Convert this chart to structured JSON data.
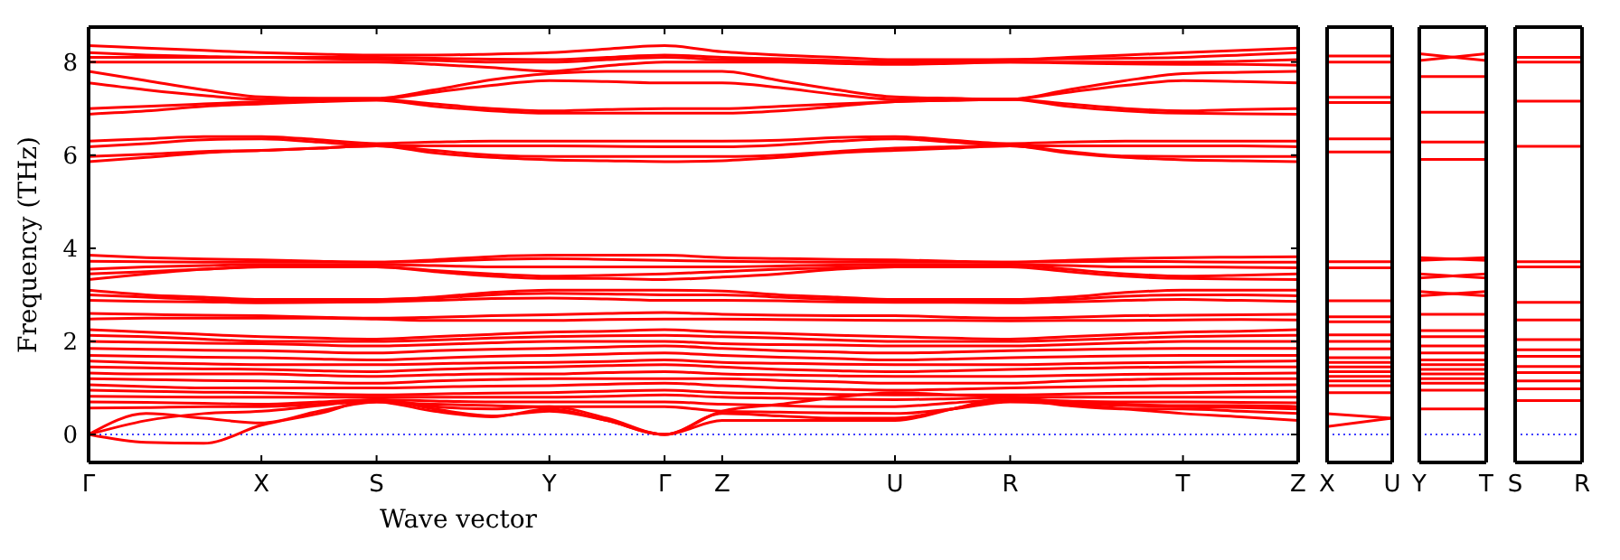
{
  "chart_data": [
    {
      "type": "line",
      "xlabel": "Wave vector",
      "ylabel": "Frequency (THz)",
      "color": "#ff0000",
      "tick_labels": "xy",
      "categories": [
        "Γ",
        null,
        null,
        "X",
        null,
        "S",
        null,
        null,
        "Y",
        null,
        "Γ",
        "Z",
        null,
        null,
        "U",
        null,
        "R",
        null,
        null,
        "T",
        null,
        "Z"
      ],
      "ylim": [
        -0.6,
        8.75
      ],
      "yticks": [
        0,
        2,
        4,
        6,
        8
      ],
      "ref_lines": [
        {
          "axis": "y",
          "value": 0,
          "color": "#0000ff",
          "line_style": "dotted"
        }
      ],
      "series": [
        {
          "values": [
            8.35,
            8.3,
            8.25,
            8.2,
            8.17,
            8.15,
            8.15,
            8.17,
            8.2,
            8.28,
            8.35,
            8.22,
            8.15,
            8.1,
            8.05,
            8.05,
            8.05,
            8.1,
            8.15,
            8.2,
            8.25,
            8.3
          ]
        },
        {
          "values": [
            8.2,
            8.15,
            8.12,
            8.1,
            8.1,
            8.1,
            8.08,
            8.06,
            8.05,
            8.1,
            8.15,
            8.1,
            8.07,
            8.03,
            8.0,
            8.02,
            8.05,
            8.07,
            8.08,
            8.1,
            8.15,
            8.2
          ]
        },
        {
          "values": [
            8.1,
            8.1,
            8.1,
            8.1,
            8.07,
            8.05,
            8.03,
            8.0,
            8.0,
            8.05,
            8.1,
            8.05,
            8.03,
            8.0,
            8.0,
            8.0,
            8.0,
            8.0,
            8.0,
            8.0,
            8.02,
            8.05
          ]
        },
        {
          "values": [
            8.0,
            8.0,
            8.0,
            8.0,
            8.0,
            8.0,
            7.95,
            7.88,
            7.8,
            7.92,
            8.0,
            8.0,
            8.0,
            7.97,
            7.95,
            7.97,
            8.0,
            7.98,
            7.96,
            7.95,
            7.95,
            7.93
          ]
        },
        {
          "values": [
            7.8,
            7.6,
            7.4,
            7.25,
            7.22,
            7.22,
            7.4,
            7.62,
            7.75,
            7.8,
            7.8,
            7.8,
            7.6,
            7.4,
            7.25,
            7.22,
            7.2,
            7.4,
            7.6,
            7.75,
            7.78,
            7.8
          ]
        },
        {
          "values": [
            7.55,
            7.4,
            7.28,
            7.2,
            7.2,
            7.2,
            7.35,
            7.5,
            7.6,
            7.58,
            7.55,
            7.55,
            7.45,
            7.3,
            7.2,
            7.2,
            7.2,
            7.35,
            7.5,
            7.6,
            7.58,
            7.55
          ]
        },
        {
          "values": [
            7.0,
            7.05,
            7.1,
            7.15,
            7.18,
            7.2,
            7.1,
            7.0,
            6.95,
            6.98,
            7.0,
            7.0,
            7.05,
            7.1,
            7.15,
            7.18,
            7.2,
            7.1,
            7.0,
            6.95,
            6.98,
            7.0
          ]
        },
        {
          "values": [
            6.88,
            6.95,
            7.05,
            7.1,
            7.15,
            7.18,
            7.05,
            6.95,
            6.9,
            6.9,
            6.9,
            6.9,
            6.95,
            7.05,
            7.15,
            7.18,
            7.2,
            7.05,
            6.95,
            6.9,
            6.89,
            6.88
          ]
        },
        {
          "values": [
            6.3,
            6.35,
            6.4,
            6.4,
            6.33,
            6.25,
            6.28,
            6.3,
            6.3,
            6.3,
            6.3,
            6.3,
            6.32,
            6.38,
            6.4,
            6.32,
            6.25,
            6.28,
            6.3,
            6.3,
            6.3,
            6.3
          ]
        },
        {
          "values": [
            6.18,
            6.25,
            6.33,
            6.35,
            6.28,
            6.2,
            6.2,
            6.2,
            6.2,
            6.19,
            6.18,
            6.18,
            6.22,
            6.3,
            6.35,
            6.28,
            6.2,
            6.2,
            6.2,
            6.2,
            6.2,
            6.18
          ]
        },
        {
          "values": [
            5.97,
            6.02,
            6.08,
            6.1,
            6.15,
            6.2,
            6.1,
            6.0,
            5.97,
            5.97,
            5.97,
            5.97,
            6.0,
            6.08,
            6.15,
            6.18,
            6.2,
            6.08,
            5.98,
            5.97,
            5.97,
            5.97
          ]
        },
        {
          "values": [
            5.86,
            5.95,
            6.05,
            6.1,
            6.15,
            6.2,
            6.05,
            5.95,
            5.9,
            5.88,
            5.86,
            5.88,
            5.95,
            6.05,
            6.1,
            6.15,
            6.2,
            6.05,
            5.95,
            5.9,
            5.88,
            5.86
          ]
        },
        {
          "values": [
            3.85,
            3.8,
            3.77,
            3.75,
            3.72,
            3.7,
            3.75,
            3.82,
            3.85,
            3.85,
            3.85,
            3.8,
            3.78,
            3.76,
            3.75,
            3.72,
            3.7,
            3.74,
            3.78,
            3.8,
            3.81,
            3.82
          ]
        },
        {
          "values": [
            3.72,
            3.71,
            3.7,
            3.7,
            3.7,
            3.7,
            3.72,
            3.76,
            3.78,
            3.76,
            3.74,
            3.72,
            3.71,
            3.7,
            3.7,
            3.7,
            3.7,
            3.71,
            3.72,
            3.71,
            3.7,
            3.7
          ]
        },
        {
          "values": [
            3.55,
            3.6,
            3.63,
            3.65,
            3.65,
            3.65,
            3.63,
            3.6,
            3.6,
            3.6,
            3.6,
            3.6,
            3.62,
            3.64,
            3.65,
            3.65,
            3.65,
            3.63,
            3.6,
            3.6,
            3.59,
            3.58
          ]
        },
        {
          "values": [
            3.45,
            3.5,
            3.55,
            3.6,
            3.6,
            3.6,
            3.52,
            3.45,
            3.4,
            3.42,
            3.45,
            3.5,
            3.55,
            3.58,
            3.6,
            3.62,
            3.65,
            3.55,
            3.45,
            3.4,
            3.42,
            3.45
          ]
        },
        {
          "values": [
            3.33,
            3.45,
            3.55,
            3.6,
            3.6,
            3.6,
            3.5,
            3.4,
            3.35,
            3.35,
            3.33,
            3.38,
            3.45,
            3.55,
            3.6,
            3.6,
            3.6,
            3.5,
            3.4,
            3.35,
            3.34,
            3.33
          ]
        },
        {
          "values": [
            3.1,
            3.0,
            2.95,
            2.9,
            2.9,
            2.9,
            2.95,
            3.05,
            3.1,
            3.1,
            3.1,
            3.08,
            3.0,
            2.95,
            2.9,
            2.9,
            2.9,
            2.95,
            3.05,
            3.1,
            3.1,
            3.1
          ]
        },
        {
          "values": [
            3.0,
            2.95,
            2.9,
            2.87,
            2.88,
            2.9,
            2.93,
            3.0,
            3.03,
            3.02,
            3.0,
            3.0,
            2.95,
            2.9,
            2.87,
            2.86,
            2.85,
            2.9,
            2.97,
            3.0,
            3.0,
            2.98
          ]
        },
        {
          "values": [
            2.88,
            2.86,
            2.85,
            2.83,
            2.84,
            2.85,
            2.88,
            2.92,
            2.93,
            2.91,
            2.88,
            2.88,
            2.87,
            2.85,
            2.84,
            2.84,
            2.83,
            2.85,
            2.88,
            2.9,
            2.88,
            2.86
          ]
        },
        {
          "values": [
            2.6,
            2.58,
            2.56,
            2.55,
            2.52,
            2.5,
            2.52,
            2.55,
            2.57,
            2.6,
            2.62,
            2.58,
            2.56,
            2.55,
            2.55,
            2.52,
            2.5,
            2.52,
            2.55,
            2.56,
            2.57,
            2.58
          ]
        },
        {
          "values": [
            2.48,
            2.5,
            2.5,
            2.5,
            2.5,
            2.48,
            2.45,
            2.45,
            2.45,
            2.47,
            2.48,
            2.48,
            2.47,
            2.46,
            2.45,
            2.45,
            2.44,
            2.45,
            2.45,
            2.46,
            2.47,
            2.46
          ]
        },
        {
          "values": [
            2.25,
            2.2,
            2.15,
            2.1,
            2.07,
            2.05,
            2.1,
            2.15,
            2.2,
            2.22,
            2.25,
            2.2,
            2.17,
            2.13,
            2.1,
            2.07,
            2.05,
            2.1,
            2.15,
            2.2,
            2.22,
            2.25
          ]
        },
        {
          "values": [
            2.13,
            2.1,
            2.05,
            2.0,
            2.0,
            2.0,
            2.03,
            2.07,
            2.1,
            2.12,
            2.13,
            2.1,
            2.07,
            2.03,
            2.0,
            2.0,
            2.0,
            2.03,
            2.07,
            2.1,
            2.12,
            2.13
          ]
        },
        {
          "values": [
            2.0,
            1.98,
            1.96,
            1.95,
            1.92,
            1.9,
            1.93,
            1.97,
            2.0,
            2.0,
            2.0,
            1.95,
            1.93,
            1.92,
            1.9,
            1.9,
            1.9,
            1.93,
            1.97,
            2.0,
            2.0,
            2.0
          ]
        },
        {
          "values": [
            1.85,
            1.83,
            1.81,
            1.8,
            1.77,
            1.75,
            1.8,
            1.83,
            1.85,
            1.88,
            1.9,
            1.85,
            1.8,
            1.77,
            1.75,
            1.77,
            1.8,
            1.82,
            1.84,
            1.85,
            1.85,
            1.85
          ]
        },
        {
          "values": [
            1.7,
            1.68,
            1.66,
            1.65,
            1.62,
            1.6,
            1.64,
            1.68,
            1.7,
            1.73,
            1.75,
            1.7,
            1.66,
            1.63,
            1.6,
            1.62,
            1.65,
            1.67,
            1.69,
            1.7,
            1.7,
            1.7
          ]
        },
        {
          "values": [
            1.58,
            1.54,
            1.52,
            1.5,
            1.5,
            1.5,
            1.52,
            1.54,
            1.55,
            1.57,
            1.6,
            1.55,
            1.53,
            1.51,
            1.5,
            1.5,
            1.5,
            1.52,
            1.54,
            1.55,
            1.57,
            1.58
          ]
        },
        {
          "values": [
            1.45,
            1.43,
            1.41,
            1.4,
            1.37,
            1.35,
            1.4,
            1.43,
            1.45,
            1.48,
            1.5,
            1.45,
            1.4,
            1.37,
            1.35,
            1.37,
            1.4,
            1.42,
            1.44,
            1.45,
            1.45,
            1.45
          ]
        },
        {
          "values": [
            1.32,
            1.3,
            1.3,
            1.3,
            1.27,
            1.25,
            1.28,
            1.3,
            1.3,
            1.33,
            1.35,
            1.3,
            1.28,
            1.26,
            1.25,
            1.25,
            1.25,
            1.27,
            1.29,
            1.3,
            1.31,
            1.32
          ]
        },
        {
          "values": [
            1.2,
            1.18,
            1.16,
            1.15,
            1.12,
            1.1,
            1.15,
            1.18,
            1.2,
            1.2,
            1.2,
            1.2,
            1.16,
            1.13,
            1.1,
            1.1,
            1.1,
            1.15,
            1.18,
            1.2,
            1.2,
            1.2
          ]
        },
        {
          "values": [
            1.07,
            1.03,
            1.0,
            1.0,
            1.0,
            1.0,
            1.02,
            1.04,
            1.05,
            1.08,
            1.1,
            1.05,
            1.0,
            0.97,
            0.95,
            0.97,
            1.0,
            1.02,
            1.04,
            1.05,
            1.06,
            1.07
          ]
        },
        {
          "values": [
            0.95,
            0.93,
            0.91,
            0.9,
            0.87,
            0.85,
            0.87,
            0.89,
            0.9,
            0.93,
            0.95,
            0.9,
            0.88,
            0.86,
            0.85,
            0.85,
            0.85,
            0.87,
            0.89,
            0.9,
            0.92,
            0.93
          ]
        },
        {
          "values": [
            0.82,
            0.81,
            0.8,
            0.8,
            0.8,
            0.8,
            0.8,
            0.8,
            0.8,
            0.82,
            0.85,
            0.8,
            0.78,
            0.76,
            0.75,
            0.77,
            0.8,
            0.8,
            0.8,
            0.8,
            0.8,
            0.8
          ]
        },
        {
          "values": [
            0.7,
            0.69,
            0.67,
            0.65,
            0.7,
            0.75,
            0.72,
            0.7,
            0.7,
            0.7,
            0.7,
            0.65,
            0.62,
            0.6,
            0.6,
            0.68,
            0.75,
            0.72,
            0.7,
            0.7,
            0.69,
            0.68
          ]
        },
        {
          "values": [
            0.57,
            0.58,
            0.6,
            0.6,
            0.65,
            0.7,
            0.65,
            0.62,
            0.6,
            0.6,
            0.6,
            0.5,
            0.48,
            0.46,
            0.45,
            0.55,
            0.7,
            0.66,
            0.62,
            0.6,
            0.58,
            0.55
          ]
        },
        {
          "values": [
            0,
            -0.17,
            -0.19,
            0.2,
            0.45,
            0.75,
            0.55,
            0.4,
            0.5,
            0.3,
            0,
            0.3,
            0.3,
            0.3,
            0.3,
            0.55,
            0.8,
            0.65,
            0.55,
            0.45,
            0.38,
            0.3
          ]
        },
        {
          "values": [
            0,
            0.45,
            0.35,
            0.25,
            0.5,
            0.7,
            0.5,
            0.38,
            0.55,
            0.3,
            0,
            0.45,
            0.4,
            0.35,
            0.35,
            0.55,
            0.75,
            0.62,
            0.55,
            0.55,
            0.5,
            0.45
          ]
        },
        {
          "values": [
            0,
            0.3,
            0.45,
            0.5,
            0.62,
            0.75,
            0.6,
            0.55,
            0.6,
            0.35,
            0,
            0.5,
            0.65,
            0.8,
            0.9,
            0.85,
            0.8,
            0.7,
            0.65,
            0.62,
            0.62,
            0.6
          ]
        }
      ]
    },
    {
      "type": "line",
      "color": "#ff0000",
      "tick_labels": "x",
      "categories": [
        "X",
        "U"
      ],
      "ylim": [
        -0.6,
        8.75
      ],
      "ref_lines": [
        {
          "axis": "y",
          "value": 0,
          "color": "#0000ff",
          "line_style": "dotted"
        }
      ],
      "series": [
        {
          "values": [
            8.13,
            8.13
          ]
        },
        {
          "values": [
            8.0,
            8.0
          ]
        },
        {
          "values": [
            7.24,
            7.24
          ]
        },
        {
          "values": [
            7.13,
            7.13
          ]
        },
        {
          "values": [
            6.35,
            6.35
          ]
        },
        {
          "values": [
            6.07,
            6.07
          ]
        },
        {
          "values": [
            3.71,
            3.71
          ]
        },
        {
          "values": [
            3.58,
            3.58
          ]
        },
        {
          "values": [
            2.87,
            2.87
          ]
        },
        {
          "values": [
            2.53,
            2.53
          ]
        },
        {
          "values": [
            2.42,
            2.42
          ]
        },
        {
          "values": [
            2.14,
            2.14
          ]
        },
        {
          "values": [
            2.0,
            2.0
          ]
        },
        {
          "values": [
            1.84,
            1.84
          ]
        },
        {
          "values": [
            1.65,
            1.65
          ]
        },
        {
          "values": [
            1.55,
            1.55
          ]
        },
        {
          "values": [
            1.45,
            1.45
          ]
        },
        {
          "values": [
            1.35,
            1.35
          ]
        },
        {
          "values": [
            1.25,
            1.25
          ]
        },
        {
          "values": [
            1.15,
            1.15
          ]
        },
        {
          "values": [
            1.05,
            1.05
          ]
        },
        {
          "values": [
            0.9,
            0.9
          ]
        },
        {
          "values": [
            0.45,
            0.35
          ]
        },
        {
          "values": [
            0.17,
            0.35
          ]
        }
      ]
    },
    {
      "type": "line",
      "color": "#ff0000",
      "tick_labels": "x",
      "categories": [
        "Y",
        "T"
      ],
      "ylim": [
        -0.6,
        8.75
      ],
      "ref_lines": [
        {
          "axis": "y",
          "value": 0,
          "color": "#0000ff",
          "line_style": "dotted"
        }
      ],
      "series": [
        {
          "values": [
            8.18,
            8.03
          ]
        },
        {
          "values": [
            8.03,
            8.18
          ]
        },
        {
          "values": [
            7.69,
            7.69
          ]
        },
        {
          "values": [
            6.92,
            6.92
          ]
        },
        {
          "values": [
            6.28,
            6.28
          ]
        },
        {
          "values": [
            5.91,
            5.91
          ]
        },
        {
          "values": [
            3.8,
            3.74
          ]
        },
        {
          "values": [
            3.74,
            3.8
          ]
        },
        {
          "values": [
            3.45,
            3.36
          ]
        },
        {
          "values": [
            3.36,
            3.45
          ]
        },
        {
          "values": [
            3.07,
            2.98
          ]
        },
        {
          "values": [
            2.98,
            3.07
          ]
        },
        {
          "values": [
            2.58,
            2.58
          ]
        },
        {
          "values": [
            2.23,
            2.23
          ]
        },
        {
          "values": [
            2.1,
            2.1
          ]
        },
        {
          "values": [
            1.9,
            1.9
          ]
        },
        {
          "values": [
            1.75,
            1.75
          ]
        },
        {
          "values": [
            1.6,
            1.6
          ]
        },
        {
          "values": [
            1.5,
            1.5
          ]
        },
        {
          "values": [
            1.4,
            1.4
          ]
        },
        {
          "values": [
            1.3,
            1.3
          ]
        },
        {
          "values": [
            1.2,
            1.2
          ]
        },
        {
          "values": [
            1.1,
            1.1
          ]
        },
        {
          "values": [
            0.95,
            0.95
          ]
        },
        {
          "values": [
            0.55,
            0.55
          ]
        }
      ]
    },
    {
      "type": "line",
      "color": "#ff0000",
      "tick_labels": "x",
      "categories": [
        "S",
        "R"
      ],
      "ylim": [
        -0.6,
        8.75
      ],
      "ref_lines": [
        {
          "axis": "y",
          "value": 0,
          "color": "#0000ff",
          "line_style": "dotted"
        }
      ],
      "series": [
        {
          "values": [
            8.1,
            8.1
          ]
        },
        {
          "values": [
            8.0,
            8.0
          ]
        },
        {
          "values": [
            7.16,
            7.16
          ]
        },
        {
          "values": [
            6.19,
            6.19
          ]
        },
        {
          "values": [
            3.71,
            3.71
          ]
        },
        {
          "values": [
            3.6,
            3.6
          ]
        },
        {
          "values": [
            2.84,
            2.84
          ]
        },
        {
          "values": [
            2.46,
            2.46
          ]
        },
        {
          "values": [
            2.04,
            2.04
          ]
        },
        {
          "values": [
            1.82,
            1.82
          ]
        },
        {
          "values": [
            1.68,
            1.68
          ]
        },
        {
          "values": [
            1.46,
            1.46
          ]
        },
        {
          "values": [
            1.33,
            1.33
          ]
        },
        {
          "values": [
            1.15,
            1.15
          ]
        },
        {
          "values": [
            0.98,
            0.98
          ]
        },
        {
          "values": [
            0.73,
            0.73
          ]
        }
      ]
    }
  ]
}
